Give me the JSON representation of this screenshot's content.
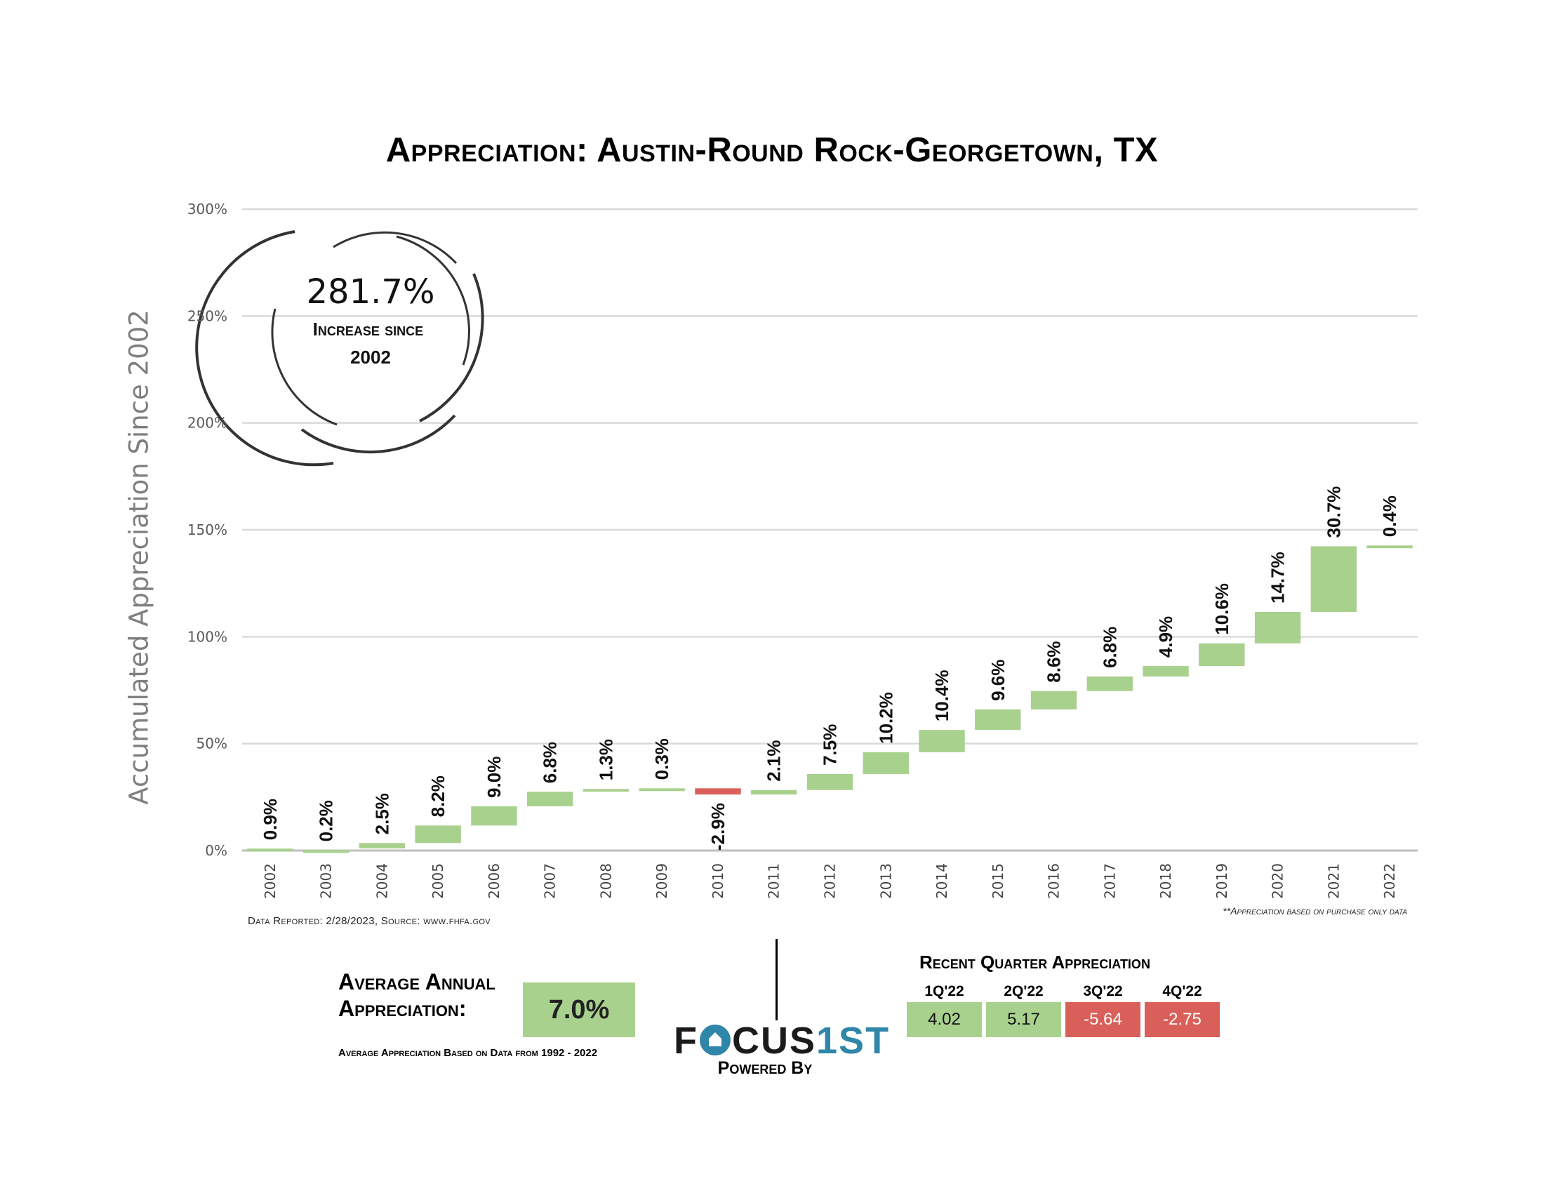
{
  "chart_data": {
    "type": "waterfall",
    "title": "Appreciation: Austin-Round Rock-Georgetown, TX",
    "ylabel": "Accumulated Appreciation Since 2002",
    "ylim": [
      0,
      300
    ],
    "yticks": [
      "0%",
      "50%",
      "100%",
      "150%",
      "200%",
      "250%",
      "300%"
    ],
    "categories": [
      "2002",
      "2003",
      "2004",
      "2005",
      "2006",
      "2007",
      "2008",
      "2009",
      "2010",
      "2011",
      "2012",
      "2013",
      "2014",
      "2015",
      "2016",
      "2017",
      "2018",
      "2019",
      "2020",
      "2021",
      "2022"
    ],
    "labels": [
      "0.9%",
      "0.2%",
      "2.5%",
      "8.2%",
      "9.0%",
      "6.8%",
      "1.3%",
      "0.3%",
      "-2.9%",
      "2.1%",
      "7.5%",
      "10.2%",
      "10.4%",
      "9.6%",
      "8.6%",
      "6.8%",
      "4.9%",
      "10.6%",
      "14.7%",
      "30.7%",
      "0.4%"
    ],
    "bar_start": [
      0,
      0,
      1,
      3.5,
      11.7,
      20.7,
      27.5,
      28.8,
      29.1,
      26.2,
      28.3,
      35.8,
      46.0,
      56.4,
      66.0,
      74.6,
      81.4,
      86.3,
      96.9,
      111.6,
      142.3
    ],
    "bar_end": [
      0.9,
      0.2,
      3.5,
      11.7,
      20.7,
      27.5,
      28.8,
      29.1,
      26.2,
      28.3,
      35.8,
      46.0,
      56.4,
      66.0,
      74.6,
      81.4,
      86.3,
      96.9,
      111.6,
      142.3,
      142.7
    ],
    "grid": true,
    "colors": {
      "positive": "#a9d18e",
      "negative": "#d9605a",
      "grid": "#d9d9d9"
    }
  },
  "callout": {
    "value": "281.7%",
    "label": "Increase since 2002"
  },
  "footer": {
    "source": "Data Reported: 2/28/2023, Source: www.fhfa.gov",
    "note": "**Appreciation based on purchase only data"
  },
  "average": {
    "label": "Average Annual Appreciation:",
    "value": "7.0%",
    "note": "Average Appreciation Based on Data from 1992 - 2022"
  },
  "brand": {
    "part1": "F",
    "part2": "CUS",
    "part3": "1ST",
    "powered": "Powered By"
  },
  "recent": {
    "title": "Recent Quarter Appreciation",
    "quarters": [
      {
        "q": "1Q'22",
        "v": "4.02",
        "status": "pos"
      },
      {
        "q": "2Q'22",
        "v": "5.17",
        "status": "pos"
      },
      {
        "q": "3Q'22",
        "v": "-5.64",
        "status": "neg"
      },
      {
        "q": "4Q'22",
        "v": "-2.75",
        "status": "neg"
      }
    ]
  }
}
